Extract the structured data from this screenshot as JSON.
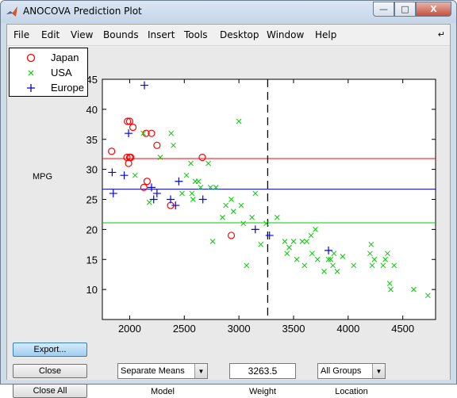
{
  "window": {
    "title": "ANOCOVA Prediction Plot",
    "buttons": {
      "minimize": "—",
      "maximize": "□",
      "close": "X"
    }
  },
  "menu": [
    "File",
    "Edit",
    "View",
    "Bounds",
    "Insert",
    "Tools",
    "Desktop",
    "Window",
    "Help"
  ],
  "legend": [
    {
      "label": "Japan",
      "marker": "circle",
      "color": "#ff0000"
    },
    {
      "label": "USA",
      "marker": "x",
      "color": "#00cc00"
    },
    {
      "label": "Europe",
      "marker": "plus",
      "color": "#0000ff"
    }
  ],
  "ylabel": "MPG",
  "buttons": {
    "export": "Export...",
    "close": "Close",
    "close_all": "Close All"
  },
  "controls": {
    "model_value": "Separate Means",
    "model_label": "Model",
    "weight_value": "3263.5",
    "weight_label": "Weight",
    "location_value": "All Groups",
    "location_label": "Location"
  },
  "chart_data": {
    "type": "scatter",
    "xlim": [
      1750,
      4800
    ],
    "ylim": [
      5,
      45
    ],
    "xticks": [
      2000,
      2500,
      3000,
      3500,
      4000,
      4500
    ],
    "yticks": [
      10,
      15,
      20,
      25,
      30,
      35,
      40,
      45
    ],
    "vline_x": 3263.5,
    "hlines": [
      {
        "group": "Japan",
        "y": 31.8,
        "color": "#ff0000"
      },
      {
        "group": "Europe",
        "y": 26.7,
        "color": "#0000cc"
      },
      {
        "group": "USA",
        "y": 21.1,
        "color": "#00cc00"
      }
    ],
    "series": [
      {
        "name": "Japan",
        "marker": "circle",
        "color": "#ff0000",
        "points": [
          [
            1835,
            33
          ],
          [
            1980,
            38
          ],
          [
            2000,
            38
          ],
          [
            1975,
            32
          ],
          [
            1990,
            31
          ],
          [
            2000,
            32
          ],
          [
            2010,
            32
          ],
          [
            2030,
            37
          ],
          [
            2150,
            36
          ],
          [
            2200,
            36
          ],
          [
            2250,
            34
          ],
          [
            2130,
            27
          ],
          [
            2160,
            28
          ],
          [
            2375,
            24
          ],
          [
            2665,
            32
          ],
          [
            2930,
            19
          ]
        ]
      },
      {
        "name": "Europe",
        "marker": "plus",
        "color": "#0000ff",
        "points": [
          [
            1840,
            29.5
          ],
          [
            1850,
            26
          ],
          [
            1950,
            29
          ],
          [
            1990,
            36
          ],
          [
            2135,
            44
          ],
          [
            2200,
            27
          ],
          [
            2220,
            25
          ],
          [
            2250,
            26
          ],
          [
            2375,
            25
          ],
          [
            2420,
            24
          ],
          [
            2450,
            28
          ],
          [
            2670,
            25
          ],
          [
            3150,
            20
          ],
          [
            3280,
            19
          ],
          [
            3820,
            16.5
          ]
        ]
      },
      {
        "name": "USA",
        "marker": "x",
        "color": "#00cc00",
        "points": [
          [
            2050,
            29
          ],
          [
            2125,
            36
          ],
          [
            2180,
            24.5
          ],
          [
            2280,
            32
          ],
          [
            2380,
            36
          ],
          [
            2400,
            34
          ],
          [
            2480,
            26
          ],
          [
            2520,
            29
          ],
          [
            2560,
            31
          ],
          [
            2570,
            26
          ],
          [
            2580,
            25
          ],
          [
            2600,
            28
          ],
          [
            2630,
            28
          ],
          [
            2650,
            27
          ],
          [
            2720,
            31
          ],
          [
            2740,
            27
          ],
          [
            2760,
            18
          ],
          [
            2790,
            27
          ],
          [
            2850,
            22
          ],
          [
            2880,
            24
          ],
          [
            2930,
            25
          ],
          [
            2950,
            23
          ],
          [
            3000,
            38
          ],
          [
            3020,
            24
          ],
          [
            3040,
            21
          ],
          [
            3070,
            14
          ],
          [
            3120,
            22
          ],
          [
            3150,
            26
          ],
          [
            3200,
            17.5
          ],
          [
            3250,
            21
          ],
          [
            3350,
            22
          ],
          [
            3420,
            18
          ],
          [
            3440,
            16
          ],
          [
            3460,
            17
          ],
          [
            3500,
            18
          ],
          [
            3530,
            15
          ],
          [
            3580,
            18
          ],
          [
            3600,
            14
          ],
          [
            3620,
            18
          ],
          [
            3660,
            19
          ],
          [
            3670,
            16
          ],
          [
            3700,
            20
          ],
          [
            3720,
            15
          ],
          [
            3780,
            13
          ],
          [
            3820,
            15
          ],
          [
            3840,
            15
          ],
          [
            3860,
            14
          ],
          [
            3870,
            16
          ],
          [
            3900,
            13
          ],
          [
            3950,
            15.5
          ],
          [
            4050,
            14
          ],
          [
            4200,
            16
          ],
          [
            4210,
            17.5
          ],
          [
            4220,
            14
          ],
          [
            4240,
            15
          ],
          [
            4320,
            14
          ],
          [
            4340,
            15
          ],
          [
            4360,
            16
          ],
          [
            4380,
            11
          ],
          [
            4390,
            10
          ],
          [
            4420,
            14
          ],
          [
            4600,
            10
          ],
          [
            4730,
            9
          ]
        ]
      }
    ]
  }
}
